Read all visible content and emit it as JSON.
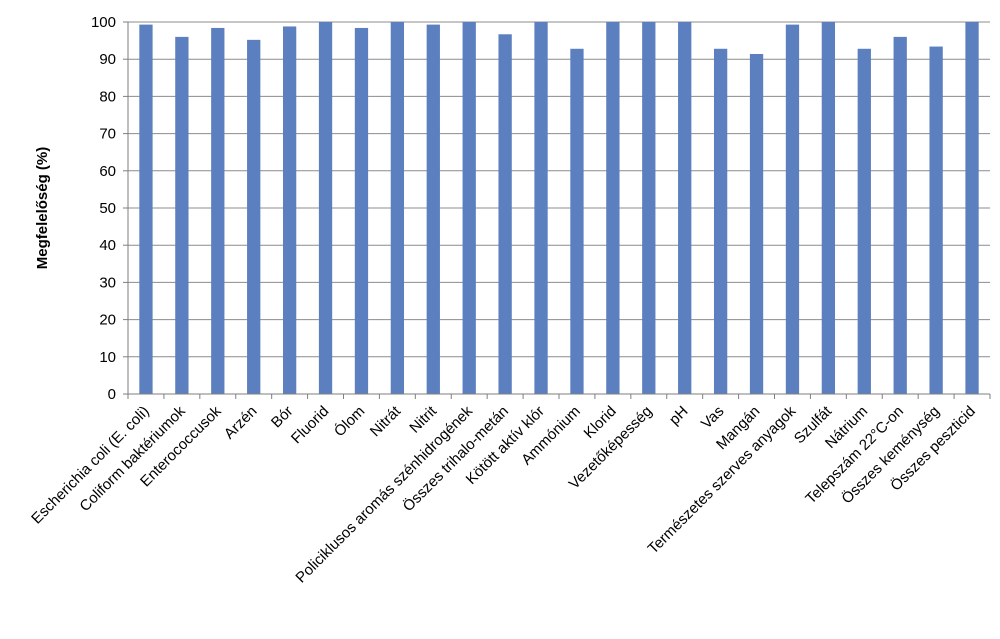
{
  "chart_data": {
    "type": "bar",
    "title": "",
    "xlabel": "",
    "ylabel": "Megfelelőség (%)",
    "ylim": [
      0,
      100
    ],
    "yticks": [
      0,
      10,
      20,
      30,
      40,
      50,
      60,
      70,
      80,
      90,
      100
    ],
    "grid": true,
    "legend": "none",
    "bar_color": "#5b7fbf",
    "categories": [
      "Escherichia coli (E. coli)",
      "Coliform baktériumok",
      "Enterococcusok",
      "Arzén",
      "Bór",
      "Fluorid",
      "Ólom",
      "Nitrát",
      "Nitrit",
      "Policiklusos aromás szénhidrogének",
      "Összes trihalo-metán",
      "Kötött aktív klór",
      "Ammónium",
      "Klorid",
      "Vezetőképesség",
      "pH",
      "Vas",
      "Mangán",
      "Természetes szerves anyagok",
      "Szulfát",
      "Nátrium",
      "Telepszám 22°C-on",
      "Összes keménység",
      "Összes peszticid"
    ],
    "values": [
      99.3,
      96,
      98.4,
      95.2,
      98.8,
      100,
      98.4,
      100,
      99.3,
      100,
      96.7,
      100,
      92.8,
      100,
      100,
      100,
      92.8,
      91.4,
      99.3,
      100,
      92.8,
      96,
      93.4,
      100
    ]
  }
}
